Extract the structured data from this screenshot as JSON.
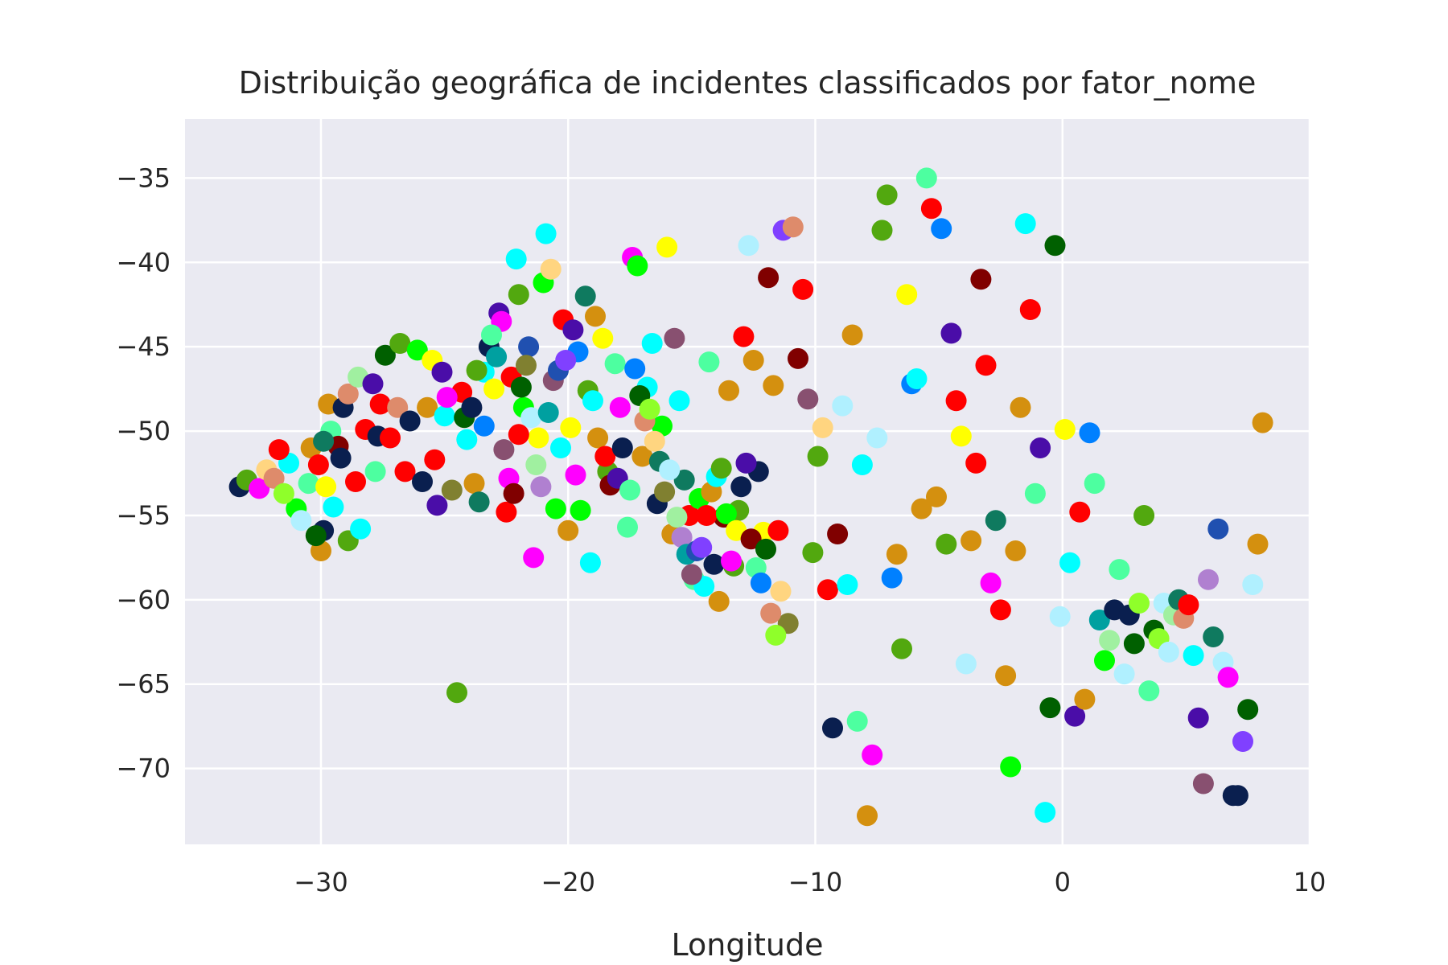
{
  "chart_data": {
    "type": "scatter",
    "title": "Distribuição geográfica de incidentes classificados por fator_nome",
    "xlabel": "Longitude",
    "ylabel": "",
    "xlim": [
      -35.5,
      10
    ],
    "ylim": [
      -74.5,
      -31.5
    ],
    "xticks": [
      -30,
      -20,
      -10,
      0,
      10
    ],
    "yticks": [
      -35,
      -40,
      -45,
      -50,
      -55,
      -60,
      -65,
      -70
    ],
    "xtick_labels": [
      "−30",
      "−20",
      "−10",
      "0",
      "10"
    ],
    "ytick_labels": [
      "−35",
      "−40",
      "−45",
      "−50",
      "−55",
      "−60",
      "−65",
      "−70"
    ],
    "grid": true,
    "legend": "none",
    "background": "#eaeaf2",
    "grid_color": "#ffffff",
    "palette": [
      "#ff0000",
      "#d4900f",
      "#00ffff",
      "#52a80f",
      "#00ff00",
      "#ff00ff",
      "#ffff00",
      "#0a1f4f",
      "#4a0da8",
      "#800000",
      "#4dffa0",
      "#0080ff",
      "#006000",
      "#de8b6b",
      "#8fff2a",
      "#ffd580",
      "#0f7a5f",
      "#808030",
      "#b0f0ff",
      "#a0f0a0",
      "#b080d0",
      "#00a0a0",
      "#885070",
      "#2050b0",
      "#8040ff"
    ],
    "points": [
      [
        -33.3,
        -53.3,
        7
      ],
      [
        -33.0,
        -52.9,
        3
      ],
      [
        -32.5,
        -53.4,
        5
      ],
      [
        -32.2,
        -52.3,
        15
      ],
      [
        -31.9,
        -52.8,
        13
      ],
      [
        -31.3,
        -51.9,
        2
      ],
      [
        -31.0,
        -54.6,
        4
      ],
      [
        -30.8,
        -55.3,
        18
      ],
      [
        -30.5,
        -53.1,
        10
      ],
      [
        -30.4,
        -51.0,
        1
      ],
      [
        -30.1,
        -52.0,
        0
      ],
      [
        -30.0,
        -57.1,
        1
      ],
      [
        -29.9,
        -55.9,
        7
      ],
      [
        -29.8,
        -53.3,
        6
      ],
      [
        -29.7,
        -48.4,
        1
      ],
      [
        -29.6,
        -50.0,
        10
      ],
      [
        -29.5,
        -54.5,
        2
      ],
      [
        -29.3,
        -50.9,
        9
      ],
      [
        -29.2,
        -51.6,
        7
      ],
      [
        -29.1,
        -48.6,
        7
      ],
      [
        -28.9,
        -56.5,
        3
      ],
      [
        -28.6,
        -53.0,
        0
      ],
      [
        -28.4,
        -55.8,
        2
      ],
      [
        -28.2,
        -49.9,
        0
      ],
      [
        -27.8,
        -52.4,
        10
      ],
      [
        -27.7,
        -50.3,
        7
      ],
      [
        -27.6,
        -48.4,
        0
      ],
      [
        -27.2,
        -50.4,
        0
      ],
      [
        -26.9,
        -48.6,
        13
      ],
      [
        -26.6,
        -52.4,
        0
      ],
      [
        -26.4,
        -49.4,
        7
      ],
      [
        -25.9,
        -53.0,
        7
      ],
      [
        -25.7,
        -48.6,
        1
      ],
      [
        -25.4,
        -51.7,
        0
      ],
      [
        -25.3,
        -54.4,
        8
      ],
      [
        -25.0,
        -49.1,
        2
      ],
      [
        -24.7,
        -53.5,
        17
      ],
      [
        -24.5,
        -65.5,
        3
      ],
      [
        -24.3,
        -47.7,
        0
      ],
      [
        -24.1,
        -50.5,
        2
      ],
      [
        -23.8,
        -53.1,
        1
      ],
      [
        -23.6,
        -54.2,
        16
      ],
      [
        -23.4,
        -46.5,
        2
      ],
      [
        -23.2,
        -45.0,
        7
      ],
      [
        -23.0,
        -47.5,
        6
      ],
      [
        -22.8,
        -43.0,
        8
      ],
      [
        -22.7,
        -43.5,
        5
      ],
      [
        -22.5,
        -54.8,
        0
      ],
      [
        -22.3,
        -46.8,
        0
      ],
      [
        -22.1,
        -39.8,
        2
      ],
      [
        -22.0,
        -41.9,
        3
      ],
      [
        -21.8,
        -48.6,
        4
      ],
      [
        -21.6,
        -45.0,
        23
      ],
      [
        -21.4,
        -57.5,
        5
      ],
      [
        -21.2,
        -50.4,
        6
      ],
      [
        -21.0,
        -41.2,
        4
      ],
      [
        -20.9,
        -38.3,
        2
      ],
      [
        -20.7,
        -40.4,
        15
      ],
      [
        -20.5,
        -54.6,
        4
      ],
      [
        -20.3,
        -51.0,
        2
      ],
      [
        -20.2,
        -43.4,
        0
      ],
      [
        -20.0,
        -55.9,
        1
      ],
      [
        -19.8,
        -44.0,
        8
      ],
      [
        -19.6,
        -45.3,
        11
      ],
      [
        -19.3,
        -42.0,
        16
      ],
      [
        -19.1,
        -57.8,
        2
      ],
      [
        -18.9,
        -43.2,
        1
      ],
      [
        -18.6,
        -44.5,
        6
      ],
      [
        -18.4,
        -52.4,
        3
      ],
      [
        -18.1,
        -46.0,
        10
      ],
      [
        -17.9,
        -48.6,
        5
      ],
      [
        -17.6,
        -55.7,
        10
      ],
      [
        -17.4,
        -39.7,
        5
      ],
      [
        -17.2,
        -40.2,
        4
      ],
      [
        -17.0,
        -51.5,
        1
      ],
      [
        -16.8,
        -47.4,
        2
      ],
      [
        -16.6,
        -44.8,
        2
      ],
      [
        -16.4,
        -54.3,
        7
      ],
      [
        -16.2,
        -49.7,
        4
      ],
      [
        -16.0,
        -39.1,
        6
      ],
      [
        -15.8,
        -56.1,
        1
      ],
      [
        -15.7,
        -44.5,
        22
      ],
      [
        -15.5,
        -48.2,
        2
      ],
      [
        -15.3,
        -52.9,
        16
      ],
      [
        -15.1,
        -55.0,
        0
      ],
      [
        -14.9,
        -58.8,
        10
      ],
      [
        -14.7,
        -54.0,
        4
      ],
      [
        -14.5,
        -59.2,
        2
      ],
      [
        -14.3,
        -45.9,
        10
      ],
      [
        -14.1,
        -57.9,
        7
      ],
      [
        -13.9,
        -60.1,
        1
      ],
      [
        -13.7,
        -55.1,
        9
      ],
      [
        -13.5,
        -47.6,
        1
      ],
      [
        -13.3,
        -58.0,
        3
      ],
      [
        -13.1,
        -54.7,
        3
      ],
      [
        -12.9,
        -44.4,
        0
      ],
      [
        -12.7,
        -39.0,
        18
      ],
      [
        -12.5,
        -45.8,
        1
      ],
      [
        -12.3,
        -52.4,
        7
      ],
      [
        -12.1,
        -56.0,
        6
      ],
      [
        -11.9,
        -40.9,
        9
      ],
      [
        -11.7,
        -47.3,
        1
      ],
      [
        -11.5,
        -55.9,
        0
      ],
      [
        -11.3,
        -38.1,
        24
      ],
      [
        -11.1,
        -61.4,
        17
      ],
      [
        -10.9,
        -37.9,
        13
      ],
      [
        -10.7,
        -45.7,
        9
      ],
      [
        -10.5,
        -41.6,
        0
      ],
      [
        -10.3,
        -48.1,
        22
      ],
      [
        -10.1,
        -57.2,
        3
      ],
      [
        -9.9,
        -51.5,
        3
      ],
      [
        -9.7,
        -49.8,
        15
      ],
      [
        -9.5,
        -59.4,
        0
      ],
      [
        -9.3,
        -67.6,
        7
      ],
      [
        -9.1,
        -56.1,
        9
      ],
      [
        -8.9,
        -48.5,
        18
      ],
      [
        -8.7,
        -59.1,
        2
      ],
      [
        -8.5,
        -44.3,
        1
      ],
      [
        -8.3,
        -67.2,
        10
      ],
      [
        -8.1,
        -52.0,
        2
      ],
      [
        -7.9,
        -72.8,
        1
      ],
      [
        -7.7,
        -69.2,
        5
      ],
      [
        -7.5,
        -50.4,
        18
      ],
      [
        -7.3,
        -38.1,
        3
      ],
      [
        -7.1,
        -36.0,
        3
      ],
      [
        -6.9,
        -58.7,
        11
      ],
      [
        -6.7,
        -57.3,
        1
      ],
      [
        -6.5,
        -62.9,
        3
      ],
      [
        -6.3,
        -41.9,
        6
      ],
      [
        -6.1,
        -47.2,
        11
      ],
      [
        -5.9,
        -46.9,
        2
      ],
      [
        -5.7,
        -54.6,
        1
      ],
      [
        -5.5,
        -35.0,
        10
      ],
      [
        -5.3,
        -36.8,
        0
      ],
      [
        -5.1,
        -53.9,
        1
      ],
      [
        -4.9,
        -38.0,
        11
      ],
      [
        -4.7,
        -56.7,
        3
      ],
      [
        -4.5,
        -44.2,
        8
      ],
      [
        -4.3,
        -48.2,
        0
      ],
      [
        -4.1,
        -50.3,
        6
      ],
      [
        -3.9,
        -63.8,
        18
      ],
      [
        -3.7,
        -56.5,
        1
      ],
      [
        -3.5,
        -51.9,
        0
      ],
      [
        -3.3,
        -41.0,
        9
      ],
      [
        -3.1,
        -46.1,
        0
      ],
      [
        -2.9,
        -59.0,
        5
      ],
      [
        -2.7,
        -55.3,
        16
      ],
      [
        -2.5,
        -60.6,
        0
      ],
      [
        -2.3,
        -64.5,
        1
      ],
      [
        -2.1,
        -69.9,
        4
      ],
      [
        -1.9,
        -57.1,
        1
      ],
      [
        -1.7,
        -48.6,
        1
      ],
      [
        -1.5,
        -37.7,
        2
      ],
      [
        -1.3,
        -42.8,
        0
      ],
      [
        -1.1,
        -53.7,
        10
      ],
      [
        -0.9,
        -51.0,
        8
      ],
      [
        -0.7,
        -72.6,
        2
      ],
      [
        -0.5,
        -66.4,
        12
      ],
      [
        -0.3,
        -39.0,
        12
      ],
      [
        -0.1,
        -61.0,
        18
      ],
      [
        0.1,
        -49.9,
        6
      ],
      [
        0.3,
        -57.8,
        2
      ],
      [
        0.5,
        -66.9,
        8
      ],
      [
        0.7,
        -54.8,
        0
      ],
      [
        0.9,
        -65.9,
        1
      ],
      [
        1.1,
        -50.1,
        11
      ],
      [
        1.3,
        -53.1,
        10
      ],
      [
        1.5,
        -61.2,
        21
      ],
      [
        1.7,
        -63.6,
        4
      ],
      [
        1.9,
        -62.4,
        19
      ],
      [
        2.1,
        -60.6,
        7
      ],
      [
        2.3,
        -58.2,
        10
      ],
      [
        2.5,
        -64.4,
        18
      ],
      [
        2.7,
        -60.9,
        7
      ],
      [
        2.9,
        -62.6,
        12
      ],
      [
        3.1,
        -60.2,
        14
      ],
      [
        3.3,
        -55.0,
        3
      ],
      [
        3.5,
        -65.4,
        10
      ],
      [
        3.7,
        -61.8,
        12
      ],
      [
        3.9,
        -62.3,
        14
      ],
      [
        4.1,
        -60.2,
        18
      ],
      [
        4.3,
        -63.1,
        18
      ],
      [
        4.5,
        -60.9,
        19
      ],
      [
        4.7,
        -60.0,
        16
      ],
      [
        4.9,
        -61.1,
        13
      ],
      [
        5.1,
        -60.3,
        0
      ],
      [
        5.3,
        -63.3,
        2
      ],
      [
        5.5,
        -67.0,
        8
      ],
      [
        5.7,
        -70.9,
        22
      ],
      [
        5.9,
        -58.8,
        20
      ],
      [
        6.1,
        -62.2,
        16
      ],
      [
        6.3,
        -55.8,
        23
      ],
      [
        6.5,
        -63.7,
        18
      ],
      [
        6.7,
        -64.6,
        5
      ],
      [
        6.9,
        -71.6,
        7
      ],
      [
        7.1,
        -71.6,
        7
      ],
      [
        7.3,
        -68.4,
        24
      ],
      [
        7.5,
        -66.5,
        12
      ],
      [
        7.7,
        -59.1,
        18
      ],
      [
        7.9,
        -56.7,
        1
      ],
      [
        8.1,
        -49.5,
        1
      ],
      [
        -31.7,
        -51.1,
        0
      ],
      [
        -31.5,
        -53.7,
        14
      ],
      [
        -30.2,
        -56.2,
        12
      ],
      [
        -29.9,
        -50.6,
        16
      ],
      [
        -28.9,
        -47.8,
        13
      ],
      [
        -28.5,
        -46.8,
        19
      ],
      [
        -27.9,
        -47.2,
        8
      ],
      [
        -27.4,
        -45.5,
        12
      ],
      [
        -26.8,
        -44.8,
        3
      ],
      [
        -26.1,
        -45.2,
        4
      ],
      [
        -25.5,
        -45.8,
        6
      ],
      [
        -25.1,
        -46.5,
        8
      ],
      [
        -24.9,
        -48.0,
        5
      ],
      [
        -24.2,
        -49.2,
        12
      ],
      [
        -23.9,
        -48.6,
        7
      ],
      [
        -23.7,
        -46.4,
        3
      ],
      [
        -23.4,
        -49.7,
        11
      ],
      [
        -23.1,
        -44.3,
        10
      ],
      [
        -22.9,
        -45.6,
        21
      ],
      [
        -22.6,
        -51.1,
        22
      ],
      [
        -22.4,
        -52.8,
        5
      ],
      [
        -22.2,
        -53.7,
        9
      ],
      [
        -22.0,
        -50.2,
        0
      ],
      [
        -21.9,
        -47.4,
        12
      ],
      [
        -21.7,
        -46.1,
        17
      ],
      [
        -21.5,
        -49.2,
        18
      ],
      [
        -21.3,
        -52.0,
        19
      ],
      [
        -21.1,
        -53.3,
        20
      ],
      [
        -20.8,
        -48.9,
        21
      ],
      [
        -20.6,
        -47.0,
        22
      ],
      [
        -20.4,
        -46.4,
        23
      ],
      [
        -20.1,
        -45.8,
        24
      ],
      [
        -19.9,
        -49.8,
        6
      ],
      [
        -19.7,
        -52.6,
        5
      ],
      [
        -19.5,
        -54.7,
        4
      ],
      [
        -19.2,
        -47.6,
        3
      ],
      [
        -19.0,
        -48.2,
        2
      ],
      [
        -18.8,
        -50.4,
        1
      ],
      [
        -18.5,
        -51.5,
        0
      ],
      [
        -18.3,
        -53.2,
        9
      ],
      [
        -18.0,
        -52.8,
        8
      ],
      [
        -17.8,
        -51.0,
        7
      ],
      [
        -17.5,
        -53.5,
        10
      ],
      [
        -17.3,
        -46.3,
        11
      ],
      [
        -17.1,
        -47.9,
        12
      ],
      [
        -16.9,
        -49.4,
        13
      ],
      [
        -16.7,
        -48.7,
        14
      ],
      [
        -16.5,
        -50.6,
        15
      ],
      [
        -16.3,
        -51.8,
        16
      ],
      [
        -16.1,
        -53.6,
        17
      ],
      [
        -15.9,
        -52.3,
        18
      ],
      [
        -15.6,
        -55.1,
        19
      ],
      [
        -15.4,
        -56.3,
        20
      ],
      [
        -15.2,
        -57.3,
        21
      ],
      [
        -15.0,
        -58.5,
        22
      ],
      [
        -14.8,
        -57.1,
        23
      ],
      [
        -14.6,
        -56.9,
        24
      ],
      [
        -14.4,
        -55.0,
        0
      ],
      [
        -14.2,
        -53.6,
        1
      ],
      [
        -14.0,
        -52.7,
        2
      ],
      [
        -13.8,
        -52.2,
        3
      ],
      [
        -13.6,
        -54.9,
        4
      ],
      [
        -13.4,
        -57.7,
        5
      ],
      [
        -13.2,
        -55.9,
        6
      ],
      [
        -13.0,
        -53.3,
        7
      ],
      [
        -12.8,
        -51.9,
        8
      ],
      [
        -12.6,
        -56.4,
        9
      ],
      [
        -12.4,
        -58.1,
        10
      ],
      [
        -12.2,
        -59.0,
        11
      ],
      [
        -12.0,
        -57.0,
        12
      ],
      [
        -11.8,
        -60.8,
        13
      ],
      [
        -11.6,
        -62.1,
        14
      ],
      [
        -11.4,
        -59.5,
        15
      ]
    ]
  }
}
